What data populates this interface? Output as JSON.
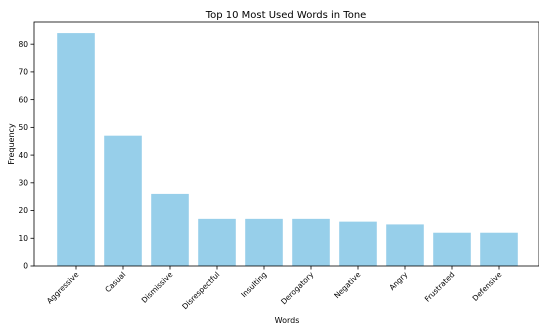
{
  "chart_data": {
    "type": "bar",
    "title": "Top 10 Most Used Words in Tone",
    "xlabel": "Words",
    "ylabel": "Frequency",
    "categories": [
      "Aggressive",
      "Casual",
      "Dismissive",
      "Disrespectful",
      "Insulting",
      "Derogatory",
      "Negative",
      "Angry",
      "Frustrated",
      "Defensive"
    ],
    "values": [
      84,
      47,
      26,
      17,
      17,
      17,
      16,
      15,
      12,
      12
    ],
    "ylim": [
      0,
      88
    ],
    "yticks": [
      0,
      10,
      20,
      30,
      40,
      50,
      60,
      70,
      80
    ],
    "grid": false,
    "bar_color": "#97cfea"
  }
}
